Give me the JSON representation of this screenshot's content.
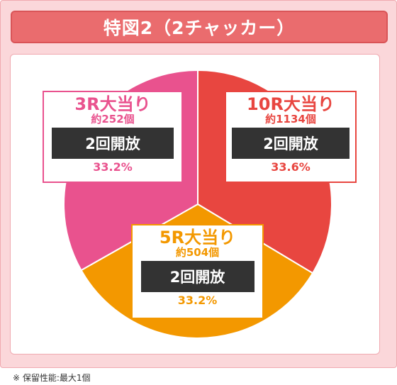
{
  "title": "特図2（2チャッカー）",
  "footnote": "※ 保留性能:最大1個",
  "colors": {
    "pink": "#e9528e",
    "red": "#e84640",
    "orange": "#f39800"
  },
  "chart_data": {
    "type": "pie",
    "title": "特図2（2チャッカー）",
    "slices": [
      {
        "label": "10R大当り",
        "count": "約1134個",
        "rounds": "2回開放",
        "percent_label": "33.6%",
        "value": 33.6,
        "color": "#e84640"
      },
      {
        "label": "5R大当り",
        "count": "約504個",
        "rounds": "2回開放",
        "percent_label": "33.2%",
        "value": 33.2,
        "color": "#f39800"
      },
      {
        "label": "3R大当り",
        "count": "約252個",
        "rounds": "2回開放",
        "percent_label": "33.2%",
        "value": 33.2,
        "color": "#e9528e"
      }
    ]
  }
}
